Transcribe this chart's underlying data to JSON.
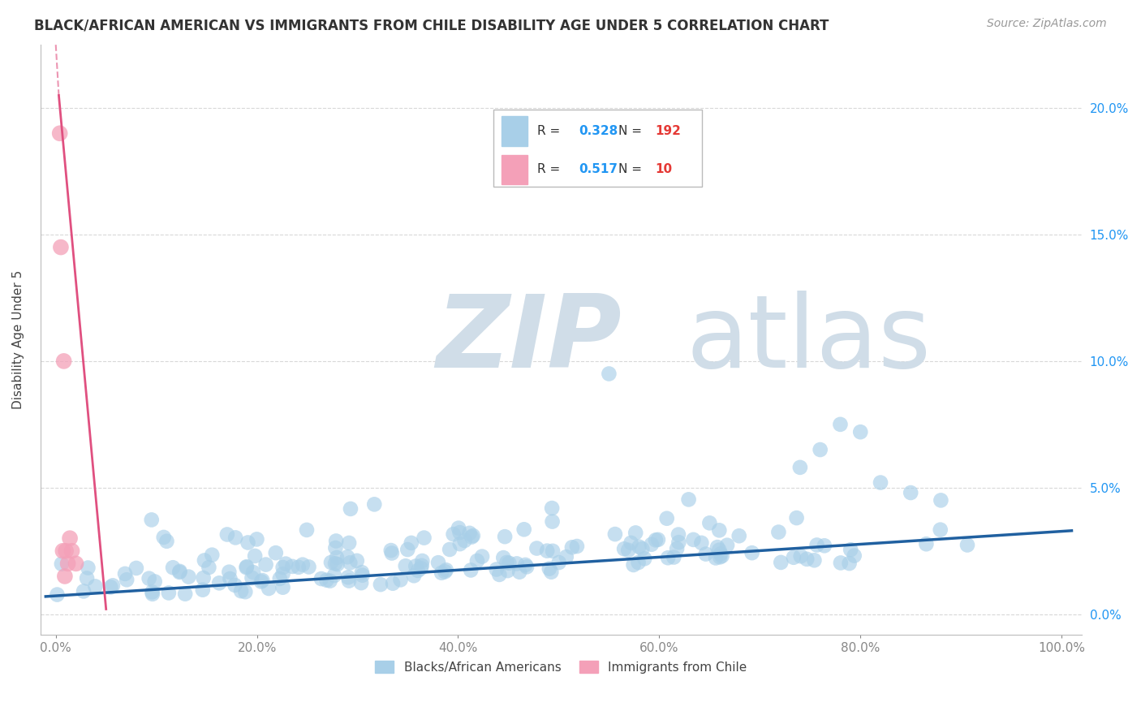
{
  "title": "BLACK/AFRICAN AMERICAN VS IMMIGRANTS FROM CHILE DISABILITY AGE UNDER 5 CORRELATION CHART",
  "source": "Source: ZipAtlas.com",
  "ylabel": "Disability Age Under 5",
  "blue_R": 0.328,
  "blue_N": 192,
  "pink_R": 0.517,
  "pink_N": 10,
  "blue_color": "#a8cfe8",
  "pink_color": "#f4a0b8",
  "blue_line_color": "#2060a0",
  "pink_line_color": "#e05080",
  "watermark_zip": "ZIP",
  "watermark_atlas": "atlas",
  "watermark_color": "#d0dde8",
  "legend_R_color": "#2196F3",
  "legend_N_color": "#e53935",
  "ytick_values": [
    0.0,
    0.05,
    0.1,
    0.15,
    0.2
  ],
  "ytick_labels_right": [
    "0.0%",
    "5.0%",
    "10.0%",
    "15.0%",
    "20.0%"
  ],
  "xtick_values": [
    0.0,
    0.2,
    0.4,
    0.6,
    0.8,
    1.0
  ],
  "xtick_labels": [
    "0.0%",
    "20.0%",
    "40.0%",
    "60.0%",
    "80.0%",
    "100.0%"
  ],
  "xlim": [
    -0.015,
    1.02
  ],
  "ylim": [
    -0.008,
    0.225
  ]
}
